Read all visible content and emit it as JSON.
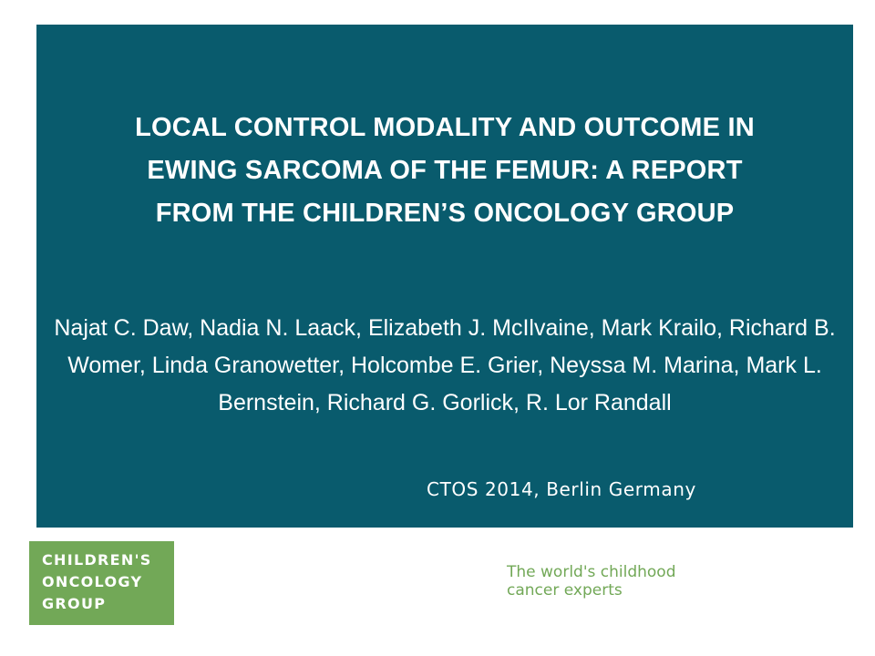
{
  "slide": {
    "title": "LOCAL CONTROL MODALITY AND OUTCOME IN\nEWING SARCOMA OF THE FEMUR:  A REPORT\nFROM THE CHILDREN’S ONCOLOGY GROUP",
    "authors": "Najat C. Daw, Nadia N. Laack, Elizabeth J. McIlvaine, Mark Krailo, Richard B. Womer, Linda Granowetter, Holcombe E. Grier, Neyssa M. Marina, Mark L. Bernstein, Richard G. Gorlick, R. Lor Randall",
    "meeting": "CTOS 2014, Berlin Germany"
  },
  "logo": {
    "lines": [
      "CHILDREN'S",
      "ONCOLOGY",
      "GROUP"
    ]
  },
  "tagline": {
    "lines": [
      "The world's childhood",
      "cancer experts"
    ]
  },
  "colors": {
    "panel": "#095b6d",
    "brand_green": "#72a857",
    "text_on_panel": "#ffffff"
  }
}
